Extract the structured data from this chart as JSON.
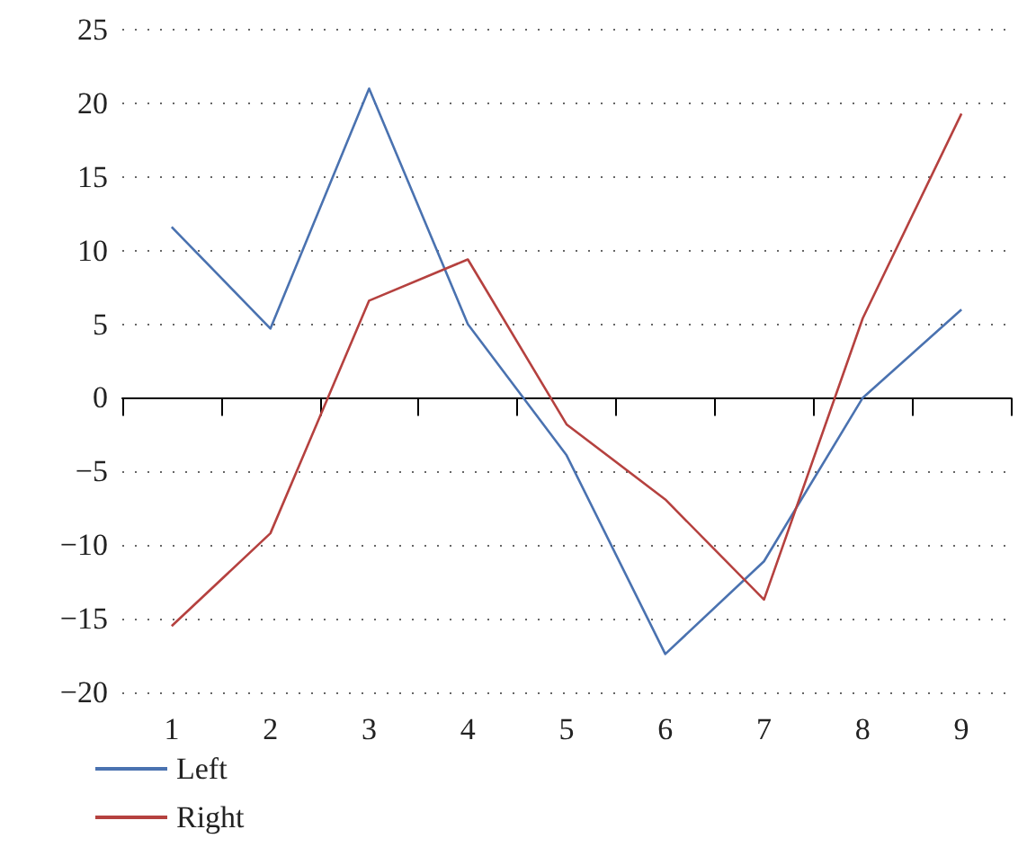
{
  "chart_data": {
    "type": "line",
    "categories": [
      "1",
      "2",
      "3",
      "4",
      "5",
      "6",
      "7",
      "8",
      "9"
    ],
    "series": [
      {
        "name": "Left",
        "color": "#4a72b0",
        "values": [
          11.6,
          4.7,
          21,
          5.0,
          -3.9,
          -17.4,
          -11.1,
          0,
          6.0
        ]
      },
      {
        "name": "Right",
        "color": "#b5413f",
        "values": [
          -15.5,
          -9.2,
          6.6,
          9.4,
          -1.8,
          -6.9,
          -13.7,
          5.4,
          19.3
        ]
      }
    ],
    "ylim": [
      -20,
      25
    ],
    "yticks": [
      {
        "value": -20,
        "label": "−20"
      },
      {
        "value": -15,
        "label": "−15"
      },
      {
        "value": -10,
        "label": "−10"
      },
      {
        "value": -5,
        "label": "−5"
      },
      0,
      5,
      10,
      15,
      20,
      25
    ],
    "grid": "y",
    "legend": "bottom left",
    "marker": "none",
    "line_style": "solid"
  }
}
